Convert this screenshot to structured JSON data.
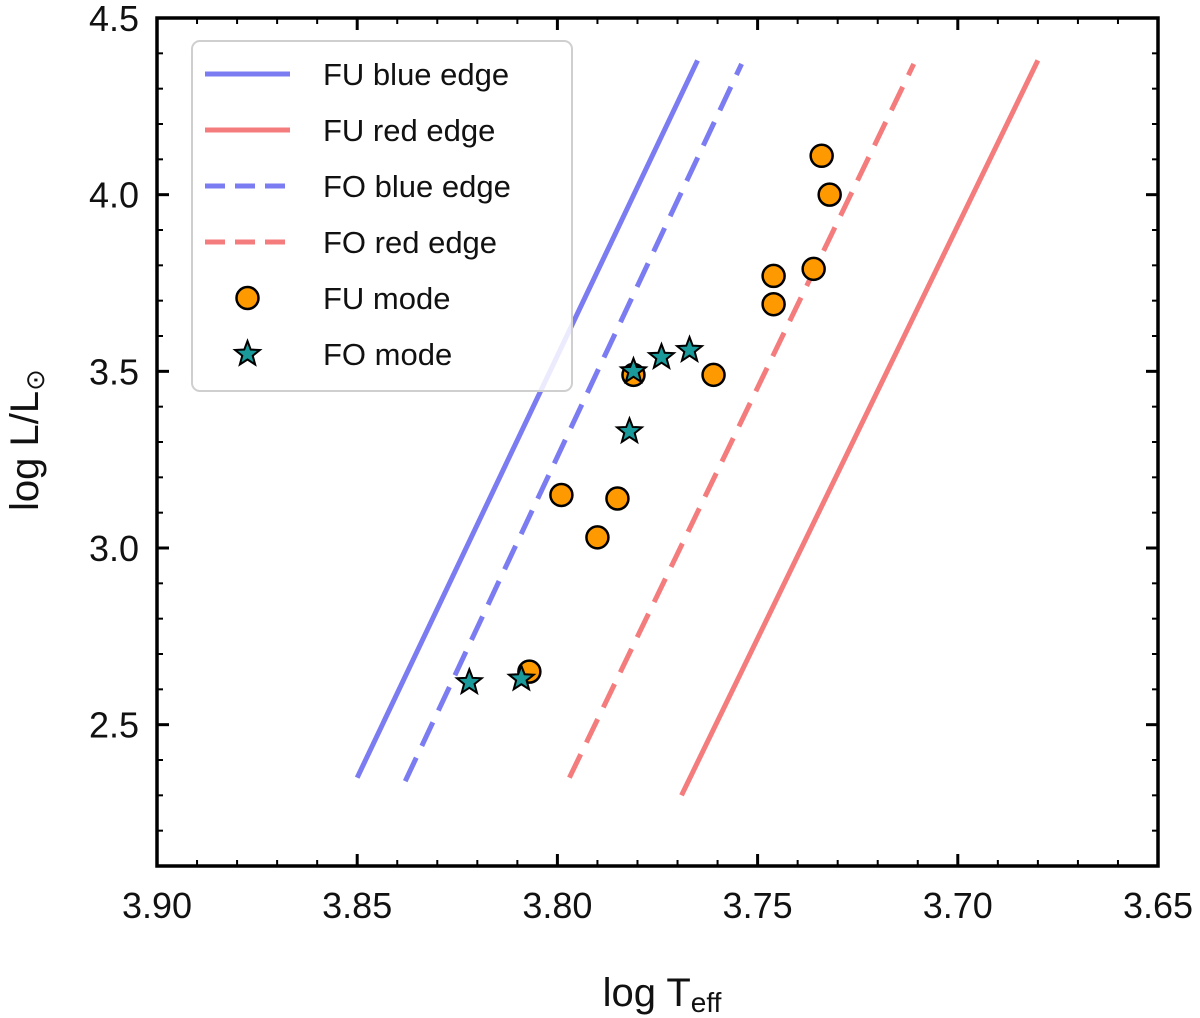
{
  "chart_data": {
    "type": "scatter",
    "title": "",
    "xlabel": "log T",
    "xlabel_sub": "eff",
    "ylabel": "log L/L",
    "ylabel_symbol": "⊙",
    "xlim": [
      3.9,
      3.65
    ],
    "ylim": [
      2.1,
      4.5
    ],
    "x_inverted": true,
    "x_ticks": [
      "3.90",
      "3.85",
      "3.80",
      "3.75",
      "3.70",
      "3.65"
    ],
    "y_ticks": [
      "2.5",
      "3.0",
      "3.5",
      "4.0",
      "4.5"
    ],
    "legend_position": "top-left",
    "series": [
      {
        "name": "FU blue edge",
        "kind": "line",
        "style": "solid",
        "color": "#7b7bf2",
        "x": [
          3.85,
          3.765
        ],
        "y": [
          2.35,
          4.38
        ]
      },
      {
        "name": "FU red edge",
        "kind": "line",
        "style": "solid",
        "color": "#f47c7c",
        "x": [
          3.769,
          3.68
        ],
        "y": [
          2.3,
          4.38
        ]
      },
      {
        "name": "FO blue edge",
        "kind": "line",
        "style": "dashed",
        "color": "#7b7bf2",
        "x": [
          3.838,
          3.754
        ],
        "y": [
          2.34,
          4.37
        ]
      },
      {
        "name": "FO red edge",
        "kind": "line",
        "style": "dashed",
        "color": "#f47c7c",
        "x": [
          3.797,
          3.711
        ],
        "y": [
          2.35,
          4.37
        ]
      },
      {
        "name": "FU mode",
        "kind": "circle",
        "color": "#ff9900",
        "x": [
          3.734,
          3.732,
          3.746,
          3.736,
          3.746,
          3.781,
          3.761,
          3.799,
          3.785,
          3.79,
          3.807
        ],
        "y": [
          4.11,
          4.0,
          3.77,
          3.79,
          3.69,
          3.49,
          3.49,
          3.15,
          3.14,
          3.03,
          2.65
        ]
      },
      {
        "name": "FO mode",
        "kind": "star",
        "color": "#1a9a9a",
        "x": [
          3.781,
          3.774,
          3.767,
          3.782,
          3.822,
          3.809
        ],
        "y": [
          3.5,
          3.54,
          3.56,
          3.33,
          2.62,
          2.63
        ]
      }
    ]
  }
}
